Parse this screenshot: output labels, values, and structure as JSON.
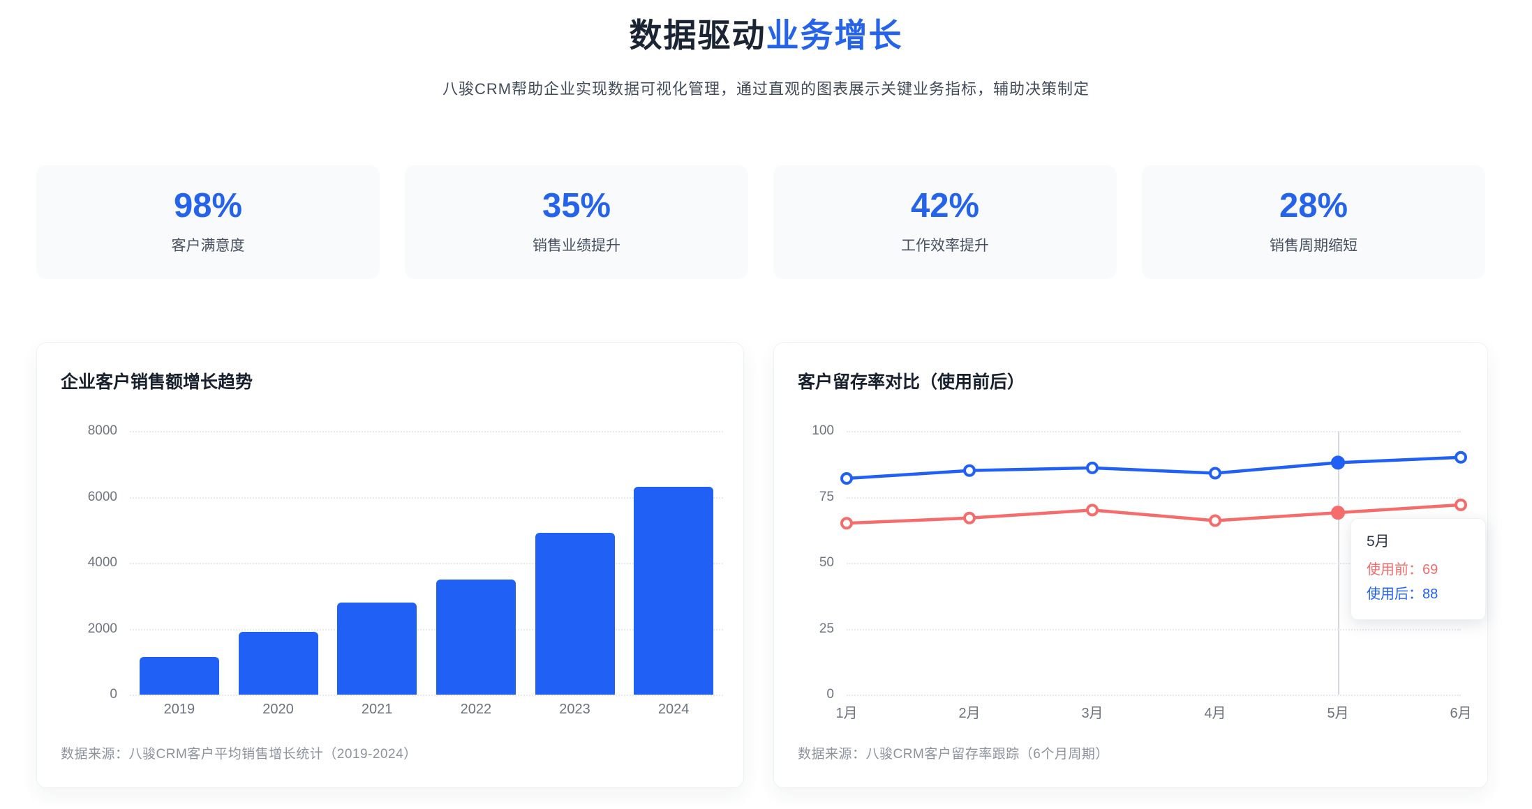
{
  "header": {
    "title_dark": "数据驱动",
    "title_accent": "业务增长",
    "subtitle": "八骏CRM帮助企业实现数据可视化管理，通过直观的图表展示关键业务指标，辅助决策制定"
  },
  "stats": {
    "items": [
      {
        "value": "98%",
        "label": "客户满意度"
      },
      {
        "value": "35%",
        "label": "销售业绩提升"
      },
      {
        "value": "42%",
        "label": "工作效率提升"
      },
      {
        "value": "28%",
        "label": "销售周期缩短"
      }
    ]
  },
  "colors": {
    "accent_blue": "#2563eb",
    "chart_blue": "#2160f5",
    "chart_red": "#f56c6c",
    "grid": "#e6e9ef"
  },
  "chart_data": [
    {
      "type": "bar",
      "title": "企业客户销售额增长趋势",
      "categories": [
        "2019",
        "2020",
        "2021",
        "2022",
        "2023",
        "2024"
      ],
      "values": [
        1150,
        1900,
        2800,
        3500,
        4900,
        6300
      ],
      "ylim": [
        0,
        8000
      ],
      "yticks": [
        0,
        2000,
        4000,
        6000,
        8000
      ],
      "grid": "dotted",
      "bar_color": "#2160f5",
      "source": "数据来源：八骏CRM客户平均销售增长统计（2019-2024）"
    },
    {
      "type": "line",
      "title": "客户留存率对比（使用前后）",
      "categories": [
        "1月",
        "2月",
        "3月",
        "4月",
        "5月",
        "6月"
      ],
      "series": [
        {
          "name": "使用前",
          "color": "#f56c6c",
          "values": [
            65,
            67,
            70,
            66,
            69,
            72
          ]
        },
        {
          "name": "使用后",
          "color": "#2160f5",
          "values": [
            82,
            85,
            86,
            84,
            88,
            90
          ]
        }
      ],
      "ylim": [
        0,
        100
      ],
      "yticks": [
        0,
        25,
        50,
        75,
        100
      ],
      "grid": "dotted",
      "active_index": 4,
      "tooltip": {
        "title": "5月",
        "lines": [
          {
            "text": "使用前：69",
            "color": "#f56c6c"
          },
          {
            "text": "使用后：88",
            "color": "#2160f5"
          }
        ]
      },
      "source": "数据来源：八骏CRM客户留存率跟踪（6个月周期）"
    }
  ]
}
